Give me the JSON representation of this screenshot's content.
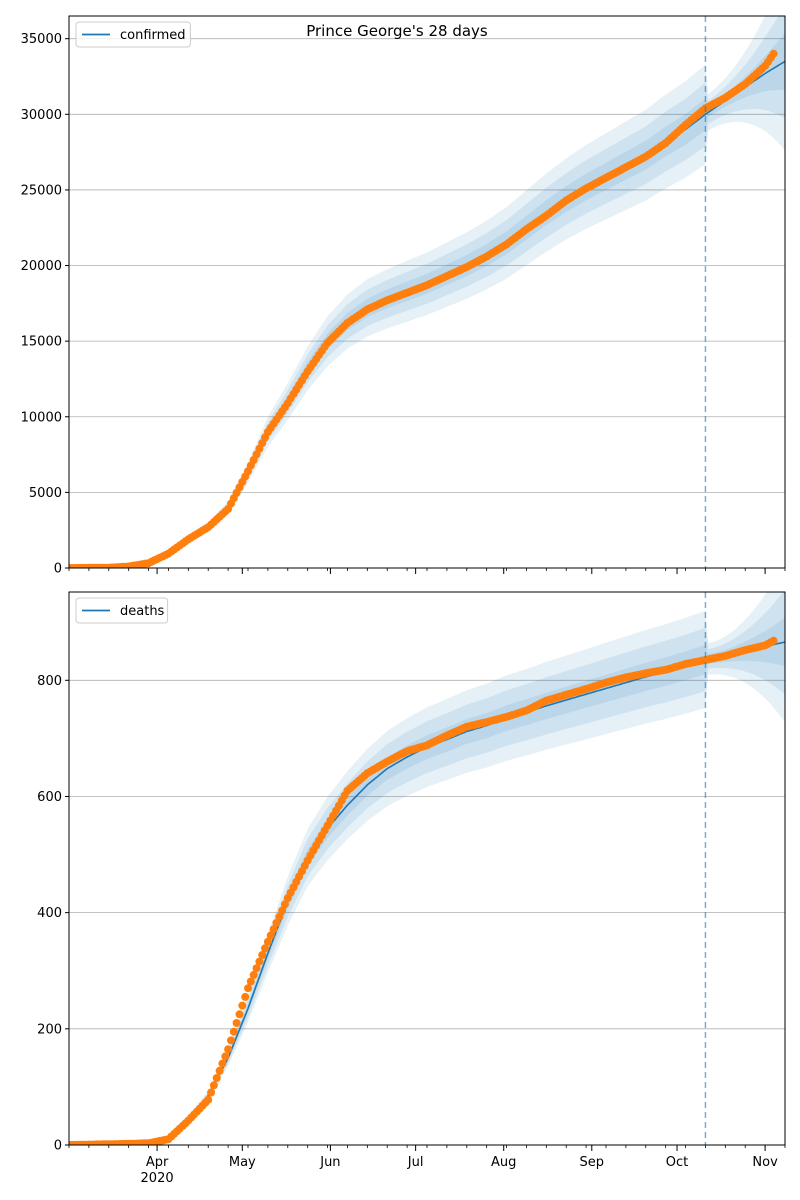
{
  "chart_data": [
    {
      "type": "line",
      "title": "Prince George's 28 days",
      "series": [
        {
          "name": "confirmed",
          "role": "model",
          "color": "#1f77b4"
        },
        {
          "role": "observed",
          "color": "#ff7f0e"
        }
      ],
      "x_range": [
        "2020-03-01",
        "2020-11-08"
      ],
      "ylim": [
        0,
        36500
      ],
      "y_ticks": [
        0,
        5000,
        10000,
        15000,
        20000,
        25000,
        30000,
        35000
      ],
      "forecast_date": "2020-10-11",
      "legend": "top-left",
      "grid": "horizontal",
      "model_curve": [
        [
          "2020-03-01",
          0
        ],
        [
          "2020-03-15",
          20
        ],
        [
          "2020-03-22",
          120
        ],
        [
          "2020-03-29",
          350
        ],
        [
          "2020-04-05",
          900
        ],
        [
          "2020-04-12",
          1800
        ],
        [
          "2020-04-19",
          2700
        ],
        [
          "2020-04-26",
          4000
        ],
        [
          "2020-05-03",
          6300
        ],
        [
          "2020-05-10",
          9000
        ],
        [
          "2020-05-17",
          11000
        ],
        [
          "2020-05-24",
          13200
        ],
        [
          "2020-05-31",
          15000
        ],
        [
          "2020-06-07",
          16300
        ],
        [
          "2020-06-14",
          17200
        ],
        [
          "2020-06-21",
          17800
        ],
        [
          "2020-06-28",
          18300
        ],
        [
          "2020-07-05",
          18800
        ],
        [
          "2020-07-12",
          19400
        ],
        [
          "2020-07-19",
          20000
        ],
        [
          "2020-07-26",
          20700
        ],
        [
          "2020-08-02",
          21500
        ],
        [
          "2020-08-09",
          22500
        ],
        [
          "2020-08-16",
          23500
        ],
        [
          "2020-08-23",
          24400
        ],
        [
          "2020-08-30",
          25200
        ],
        [
          "2020-09-06",
          25900
        ],
        [
          "2020-09-13",
          26600
        ],
        [
          "2020-09-20",
          27300
        ],
        [
          "2020-09-27",
          28200
        ],
        [
          "2020-10-04",
          29000
        ],
        [
          "2020-10-11",
          30000
        ],
        [
          "2020-10-18",
          30900
        ],
        [
          "2020-10-25",
          31800
        ],
        [
          "2020-11-01",
          32700
        ],
        [
          "2020-11-08",
          33500
        ]
      ],
      "observed": [
        [
          "2020-03-01",
          0
        ],
        [
          "2020-03-15",
          20
        ],
        [
          "2020-03-22",
          100
        ],
        [
          "2020-03-29",
          320
        ],
        [
          "2020-04-05",
          950
        ],
        [
          "2020-04-12",
          1900
        ],
        [
          "2020-04-19",
          2700
        ],
        [
          "2020-04-26",
          3900
        ],
        [
          "2020-05-03",
          6400
        ],
        [
          "2020-05-10",
          9000
        ],
        [
          "2020-05-17",
          10900
        ],
        [
          "2020-05-24",
          13000
        ],
        [
          "2020-05-31",
          14900
        ],
        [
          "2020-06-07",
          16200
        ],
        [
          "2020-06-14",
          17100
        ],
        [
          "2020-06-21",
          17700
        ],
        [
          "2020-06-28",
          18200
        ],
        [
          "2020-07-05",
          18700
        ],
        [
          "2020-07-12",
          19300
        ],
        [
          "2020-07-19",
          19900
        ],
        [
          "2020-07-26",
          20600
        ],
        [
          "2020-08-02",
          21400
        ],
        [
          "2020-08-09",
          22400
        ],
        [
          "2020-08-16",
          23300
        ],
        [
          "2020-08-23",
          24300
        ],
        [
          "2020-08-30",
          25100
        ],
        [
          "2020-09-06",
          25800
        ],
        [
          "2020-09-13",
          26500
        ],
        [
          "2020-09-20",
          27200
        ],
        [
          "2020-09-27",
          28100
        ],
        [
          "2020-10-04",
          29300
        ],
        [
          "2020-10-11",
          30400
        ],
        [
          "2020-10-18",
          31100
        ],
        [
          "2020-10-25",
          32000
        ],
        [
          "2020-11-01",
          33200
        ],
        [
          "2020-11-04",
          34000
        ]
      ],
      "band_relative_spreads": [
        0.035,
        0.07,
        0.11
      ],
      "forecast_band_spreads": [
        0.01,
        0.025,
        0.04
      ]
    },
    {
      "type": "line",
      "title": "",
      "series": [
        {
          "name": "deaths",
          "role": "model",
          "color": "#1f77b4"
        },
        {
          "role": "observed",
          "color": "#ff7f0e"
        }
      ],
      "x_range": [
        "2020-03-01",
        "2020-11-08"
      ],
      "ylim": [
        0,
        952
      ],
      "y_ticks": [
        0,
        200,
        400,
        600,
        800
      ],
      "forecast_date": "2020-10-11",
      "legend": "top-left",
      "grid": "horizontal",
      "model_curve": [
        [
          "2020-03-01",
          0
        ],
        [
          "2020-03-22",
          2
        ],
        [
          "2020-03-29",
          4
        ],
        [
          "2020-04-05",
          15
        ],
        [
          "2020-04-12",
          45
        ],
        [
          "2020-04-19",
          85
        ],
        [
          "2020-04-26",
          150
        ],
        [
          "2020-05-03",
          235
        ],
        [
          "2020-05-10",
          330
        ],
        [
          "2020-05-17",
          420
        ],
        [
          "2020-05-24",
          495
        ],
        [
          "2020-05-31",
          545
        ],
        [
          "2020-06-07",
          585
        ],
        [
          "2020-06-14",
          620
        ],
        [
          "2020-06-21",
          648
        ],
        [
          "2020-06-28",
          668
        ],
        [
          "2020-07-05",
          685
        ],
        [
          "2020-07-12",
          698
        ],
        [
          "2020-07-19",
          712
        ],
        [
          "2020-07-26",
          722
        ],
        [
          "2020-08-02",
          735
        ],
        [
          "2020-08-09",
          745
        ],
        [
          "2020-08-16",
          756
        ],
        [
          "2020-08-23",
          766
        ],
        [
          "2020-08-30",
          776
        ],
        [
          "2020-09-06",
          786
        ],
        [
          "2020-09-13",
          796
        ],
        [
          "2020-09-20",
          806
        ],
        [
          "2020-09-27",
          815
        ],
        [
          "2020-10-04",
          825
        ],
        [
          "2020-10-11",
          836
        ],
        [
          "2020-10-18",
          842
        ],
        [
          "2020-10-25",
          850
        ],
        [
          "2020-11-01",
          858
        ],
        [
          "2020-11-08",
          866
        ]
      ],
      "observed": [
        [
          "2020-03-01",
          0
        ],
        [
          "2020-03-22",
          2
        ],
        [
          "2020-03-29",
          3
        ],
        [
          "2020-04-05",
          10
        ],
        [
          "2020-04-12",
          42
        ],
        [
          "2020-04-19",
          78
        ],
        [
          "2020-04-26",
          165
        ],
        [
          "2020-05-03",
          270
        ],
        [
          "2020-05-10",
          350
        ],
        [
          "2020-05-17",
          425
        ],
        [
          "2020-05-24",
          490
        ],
        [
          "2020-05-31",
          550
        ],
        [
          "2020-06-07",
          610
        ],
        [
          "2020-06-14",
          640
        ],
        [
          "2020-06-21",
          660
        ],
        [
          "2020-06-28",
          678
        ],
        [
          "2020-07-05",
          688
        ],
        [
          "2020-07-12",
          705
        ],
        [
          "2020-07-19",
          720
        ],
        [
          "2020-07-26",
          728
        ],
        [
          "2020-08-02",
          737
        ],
        [
          "2020-08-09",
          748
        ],
        [
          "2020-08-16",
          765
        ],
        [
          "2020-08-23",
          775
        ],
        [
          "2020-08-30",
          785
        ],
        [
          "2020-09-06",
          796
        ],
        [
          "2020-09-13",
          805
        ],
        [
          "2020-09-20",
          812
        ],
        [
          "2020-09-27",
          818
        ],
        [
          "2020-10-04",
          828
        ],
        [
          "2020-10-11",
          835
        ],
        [
          "2020-10-18",
          842
        ],
        [
          "2020-10-25",
          852
        ],
        [
          "2020-11-01",
          860
        ],
        [
          "2020-11-04",
          868
        ]
      ],
      "band_relative_spreads": [
        0.03,
        0.065,
        0.1
      ],
      "forecast_band_spreads": [
        0.01,
        0.02,
        0.032
      ]
    }
  ],
  "x_axis": {
    "month_ticks": [
      {
        "date": "2020-04-01",
        "label": "Apr",
        "year_label": "2020"
      },
      {
        "date": "2020-05-01",
        "label": "May"
      },
      {
        "date": "2020-06-01",
        "label": "Jun"
      },
      {
        "date": "2020-07-01",
        "label": "Jul"
      },
      {
        "date": "2020-08-01",
        "label": "Aug"
      },
      {
        "date": "2020-09-01",
        "label": "Sep"
      },
      {
        "date": "2020-10-01",
        "label": "Oct"
      },
      {
        "date": "2020-11-01",
        "label": "Nov"
      }
    ]
  },
  "colors": {
    "model": "#1f77b4",
    "observed": "#ff7f0e",
    "band": "#1f77b4",
    "grid": "#b0b0b0",
    "forecast_line": "#1f77b4"
  }
}
